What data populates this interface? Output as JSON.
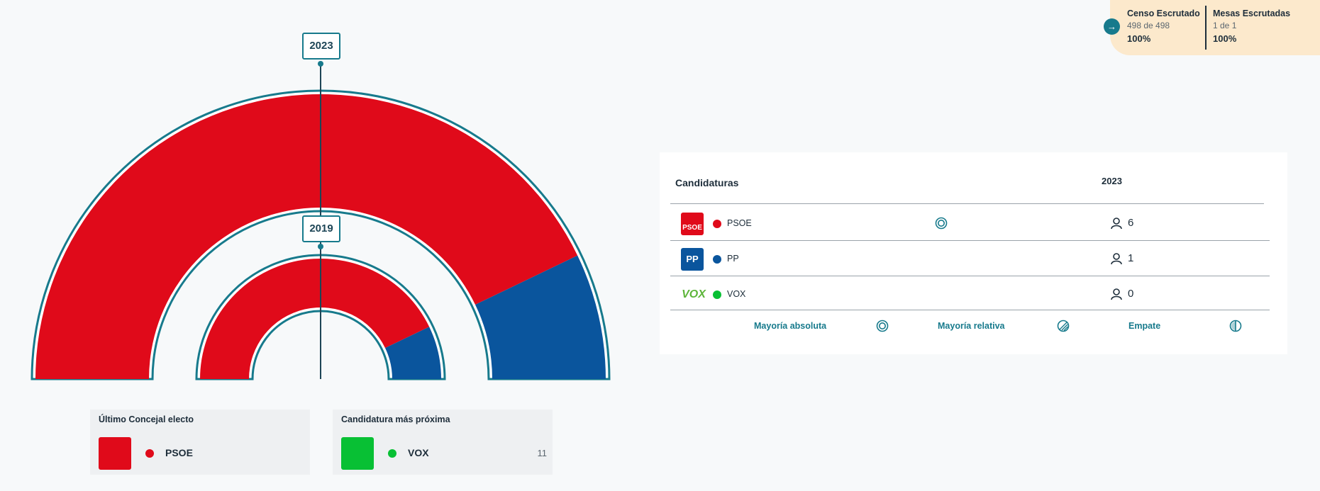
{
  "scrutiny": {
    "censo_title": "Censo Escrutado",
    "censo_count": "498 de 498",
    "censo_pct": "100%",
    "mesas_title": "Mesas Escrutadas",
    "mesas_count": "1 de 1",
    "mesas_pct": "100%",
    "go_icon": "arrow-right-icon"
  },
  "chart_data": {
    "type": "hemicycle",
    "series": [
      {
        "name": "2023",
        "total_seats": 7,
        "values": [
          {
            "party": "PSOE",
            "seats": 6,
            "color": "#e00a1a"
          },
          {
            "party": "PP",
            "seats": 1,
            "color": "#0a559d"
          }
        ]
      },
      {
        "name": "2019",
        "total_seats": 7,
        "values": [
          {
            "party": "PSOE",
            "seats": 6,
            "color": "#e00a1a"
          },
          {
            "party": "PP",
            "seats": 1,
            "color": "#0a559d"
          }
        ]
      }
    ]
  },
  "last_elected": {
    "title": "Último Concejal electo",
    "party": "PSOE",
    "color": "#e00a1a"
  },
  "next_candidate": {
    "title": "Candidatura más próxima",
    "party": "VOX",
    "color": "#08c034",
    "votes": "11"
  },
  "table": {
    "header_party": "Candidaturas",
    "header_year": "2023",
    "rows": [
      {
        "logo_text": "PSOE",
        "logo_color": "#e00a1a",
        "name": "PSOE",
        "dot_color": "#e00a1a",
        "majority_icon": "absolute-majority-icon",
        "seats": "6"
      },
      {
        "logo_text": "PP",
        "logo_color": "#0a559d",
        "name": "PP",
        "dot_color": "#0a559d",
        "seats": "1"
      },
      {
        "logo_text": "VOX",
        "logo_color": "#5db53a",
        "name": "VOX",
        "dot_color": "#08c034",
        "seats": "0"
      }
    ],
    "legend": {
      "absolute": "Mayoría absoluta",
      "relative": "Mayoría relativa",
      "tie": "Empate"
    }
  }
}
